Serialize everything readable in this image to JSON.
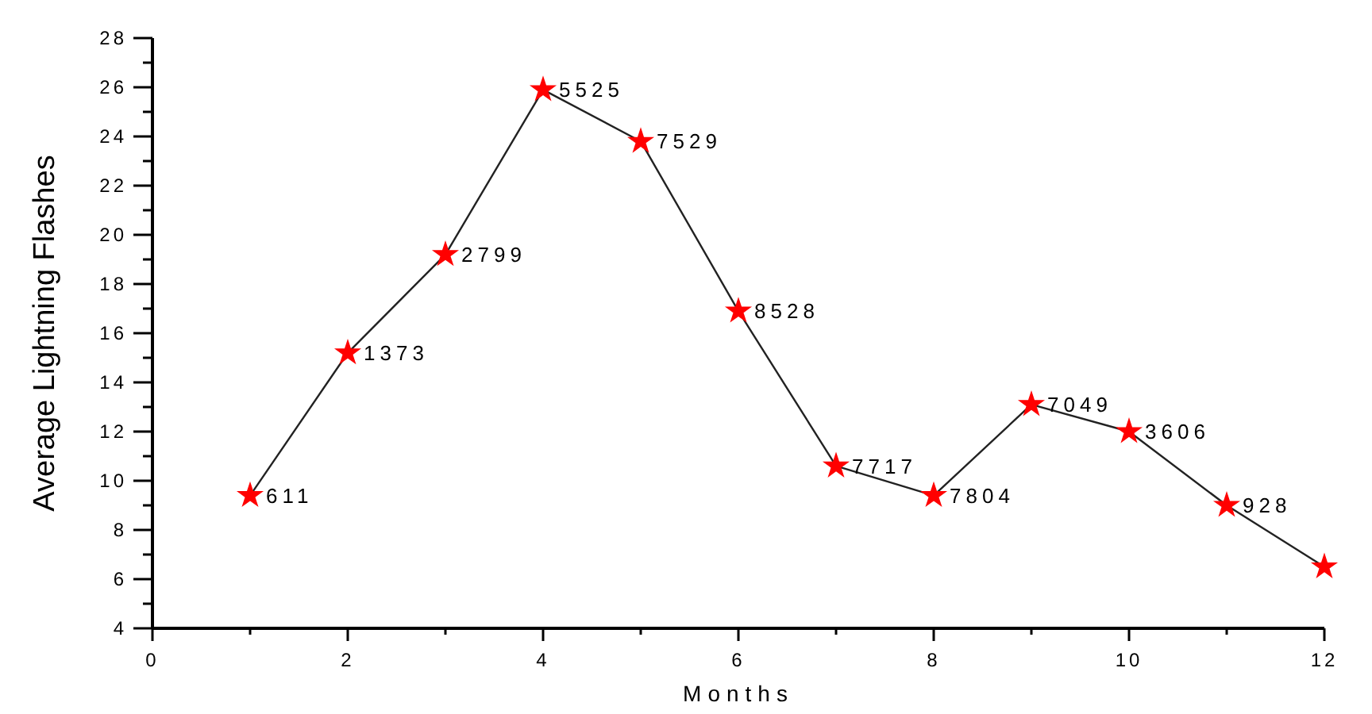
{
  "chart_data": {
    "type": "line",
    "xlabel": "Months",
    "ylabel": "Average Lightning Flashes",
    "x": [
      1,
      2,
      3,
      4,
      5,
      6,
      7,
      8,
      9,
      10,
      11,
      12
    ],
    "series": [
      {
        "color": "#ff0000",
        "values": [
          9.4,
          15.2,
          19.2,
          25.9,
          23.8,
          16.9,
          10.6,
          9.4,
          13.1,
          12.0,
          9.0,
          6.5
        ]
      }
    ],
    "xlim": [
      0,
      12
    ],
    "xticks": [
      0,
      {
        "value": 1,
        "label": null
      },
      2,
      {
        "value": 3,
        "label": null
      },
      4,
      {
        "value": 5,
        "label": null
      },
      6,
      {
        "value": 7,
        "label": null
      },
      8,
      {
        "value": 9,
        "label": null
      },
      10,
      {
        "value": 11,
        "label": null
      },
      12
    ],
    "ylim": [
      4,
      28
    ],
    "yticks": [
      4,
      {
        "value": 5,
        "label": null
      },
      6,
      {
        "value": 7,
        "label": null
      },
      8,
      {
        "value": 9,
        "label": null
      },
      10,
      {
        "value": 11,
        "label": null
      },
      12,
      {
        "value": 13,
        "label": null
      },
      14,
      {
        "value": 15,
        "label": null
      },
      16,
      {
        "value": 17,
        "label": null
      },
      18,
      {
        "value": 19,
        "label": null
      },
      20,
      {
        "value": 21,
        "label": null
      },
      22,
      {
        "value": 23,
        "label": null
      },
      24,
      {
        "value": 25,
        "label": null
      },
      26,
      {
        "value": 27,
        "label": null
      },
      28
    ],
    "grid": false,
    "marker": "star",
    "line_style": "solid",
    "annotations": [
      {
        "text": "611",
        "x": 1,
        "y": 9.4
      },
      {
        "text": "1373",
        "x": 2,
        "y": 15.2
      },
      {
        "text": "2799",
        "x": 3,
        "y": 19.2
      },
      {
        "text": "5525",
        "x": 4,
        "y": 25.9
      },
      {
        "text": "7529",
        "x": 5,
        "y": 23.8
      },
      {
        "text": "8528",
        "x": 6,
        "y": 16.9
      },
      {
        "text": "7717",
        "x": 7,
        "y": 10.6
      },
      {
        "text": "7804",
        "x": 8,
        "y": 9.4
      },
      {
        "text": "7049",
        "x": 9,
        "y": 13.1
      },
      {
        "text": "3606",
        "x": 10,
        "y": 12.0
      },
      {
        "text": "928",
        "x": 11,
        "y": 9.0
      }
    ]
  }
}
